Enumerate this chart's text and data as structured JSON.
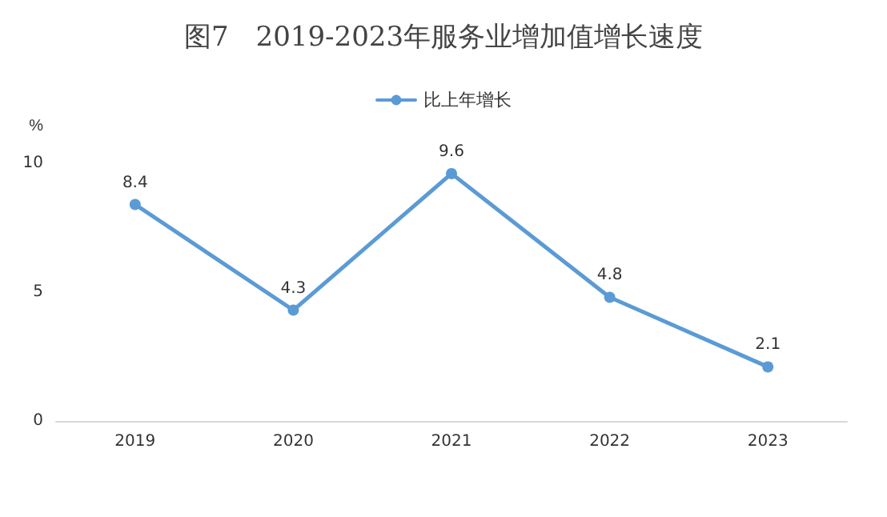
{
  "chart_data": {
    "type": "line",
    "title": "图7　2019-2023年服务业增加值增长速度",
    "ylabel": "%",
    "categories": [
      "2019",
      "2020",
      "2021",
      "2022",
      "2023"
    ],
    "series": [
      {
        "name": "比上年增长",
        "color": "#5b9bd5",
        "values": [
          8.4,
          4.3,
          9.6,
          4.8,
          2.1
        ]
      }
    ],
    "ylim": [
      0,
      10
    ],
    "yticks": [
      0,
      5,
      10
    ],
    "grid": false,
    "legend": "top",
    "marker": "circle",
    "line_style": "solid",
    "data_labels": true
  }
}
